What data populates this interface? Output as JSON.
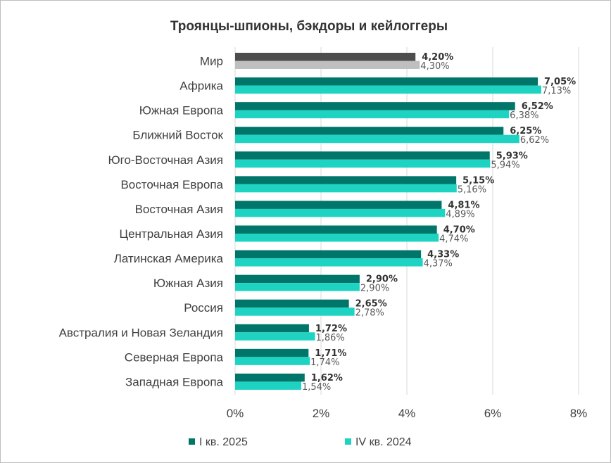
{
  "chart_data": {
    "type": "bar",
    "orientation": "horizontal",
    "title": "Троянцы-шпионы, бэкдоры и кейлоггеры",
    "categories": [
      "Мир",
      "Африка",
      "Южная Европа",
      "Ближний Восток",
      "Юго-Восточная Азия",
      "Восточная Европа",
      "Восточная Азия",
      "Центральная Азия",
      "Латинская Америка",
      "Южная Азия",
      "Россия",
      "Австралия и Новая Зеландия",
      "Северная Европа",
      "Западная Европа"
    ],
    "series": [
      {
        "name": "I кв. 2025",
        "values": [
          4.2,
          7.05,
          6.52,
          6.25,
          5.93,
          5.15,
          4.81,
          4.7,
          4.33,
          2.9,
          2.65,
          1.72,
          1.71,
          1.62
        ],
        "labels": [
          "4,20%",
          "7,05%",
          "6,52%",
          "6,25%",
          "5,93%",
          "5,15%",
          "4,81%",
          "4,70%",
          "4,33%",
          "2,90%",
          "2,65%",
          "1,72%",
          "1,71%",
          "1,62%"
        ]
      },
      {
        "name": "IV кв. 2024",
        "values": [
          4.3,
          7.13,
          6.38,
          6.62,
          5.94,
          5.16,
          4.89,
          4.74,
          4.37,
          2.9,
          2.78,
          1.86,
          1.74,
          1.54
        ],
        "labels": [
          "4,30%",
          "7,13%",
          "6,38%",
          "6,62%",
          "5,94%",
          "5,16%",
          "4,89%",
          "4,74%",
          "4,37%",
          "2,90%",
          "2,78%",
          "1,86%",
          "1,74%",
          "1,54%"
        ]
      }
    ],
    "xlim": [
      0,
      8
    ],
    "xticks": [
      "0%",
      "2%",
      "4%",
      "6%",
      "8%"
    ],
    "grid": true,
    "legend_position": "bottom",
    "colors": {
      "series1": "#00766a",
      "series2": "#1ed3c1",
      "world_series1": "#4d4d4d",
      "world_series2": "#bfbfbf"
    }
  }
}
